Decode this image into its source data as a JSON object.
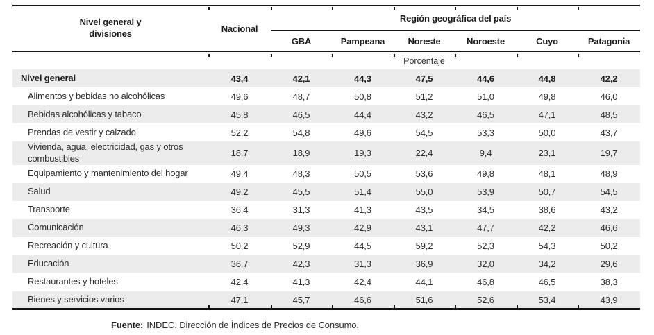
{
  "header": {
    "row_dimension_label": "Nivel general y divisiones",
    "national_label": "Nacional",
    "region_group_label": "Región geográfica del país",
    "region_columns": [
      "GBA",
      "Pampeana",
      "Noreste",
      "Noroeste",
      "Cuyo",
      "Patagonia"
    ],
    "unit_label": "Porcentaje"
  },
  "rows": [
    {
      "label": "Nivel general",
      "emphasis": true,
      "indent": false,
      "values": [
        "43,4",
        "42,1",
        "44,3",
        "47,5",
        "44,6",
        "44,8",
        "42,2"
      ]
    },
    {
      "label": "Alimentos y bebidas no alcohólicas",
      "emphasis": false,
      "indent": true,
      "values": [
        "49,6",
        "48,7",
        "50,8",
        "51,2",
        "51,0",
        "49,8",
        "46,0"
      ]
    },
    {
      "label": "Bebidas alcohólicas y tabaco",
      "emphasis": false,
      "indent": true,
      "values": [
        "45,8",
        "46,5",
        "44,4",
        "43,2",
        "46,5",
        "47,1",
        "48,5"
      ]
    },
    {
      "label": "Prendas de vestir y calzado",
      "emphasis": false,
      "indent": true,
      "values": [
        "52,2",
        "54,8",
        "49,6",
        "54,5",
        "53,3",
        "50,0",
        "43,7"
      ]
    },
    {
      "label": "Vivienda, agua, electricidad, gas y otros combustibles",
      "emphasis": false,
      "indent": true,
      "values": [
        "18,7",
        "18,9",
        "19,3",
        "22,4",
        "9,4",
        "23,1",
        "19,7"
      ]
    },
    {
      "label": "Equipamiento y mantenimiento del hogar",
      "emphasis": false,
      "indent": true,
      "values": [
        "49,4",
        "48,3",
        "50,5",
        "53,6",
        "49,8",
        "48,1",
        "48,9"
      ]
    },
    {
      "label": "Salud",
      "emphasis": false,
      "indent": true,
      "values": [
        "49,2",
        "45,5",
        "51,4",
        "55,0",
        "53,9",
        "50,7",
        "54,5"
      ]
    },
    {
      "label": "Transporte",
      "emphasis": false,
      "indent": true,
      "values": [
        "36,4",
        "31,3",
        "41,3",
        "43,5",
        "34,5",
        "38,6",
        "43,2"
      ]
    },
    {
      "label": "Comunicación",
      "emphasis": false,
      "indent": true,
      "values": [
        "46,3",
        "49,3",
        "42,9",
        "43,1",
        "47,7",
        "42,2",
        "46,6"
      ]
    },
    {
      "label": "Recreación y cultura",
      "emphasis": false,
      "indent": true,
      "values": [
        "50,2",
        "52,9",
        "44,5",
        "59,2",
        "52,3",
        "54,3",
        "50,2"
      ]
    },
    {
      "label": "Educación",
      "emphasis": false,
      "indent": true,
      "values": [
        "36,7",
        "42,3",
        "31,3",
        "36,9",
        "32,0",
        "34,2",
        "29,6"
      ]
    },
    {
      "label": "Restaurantes y hoteles",
      "emphasis": false,
      "indent": true,
      "values": [
        "42,4",
        "41,3",
        "42,4",
        "44,1",
        "46,8",
        "46,5",
        "38,3"
      ]
    },
    {
      "label": "Bienes y servicios varios",
      "emphasis": false,
      "indent": true,
      "values": [
        "47,1",
        "45,7",
        "46,6",
        "51,6",
        "52,6",
        "53,4",
        "43,9"
      ]
    }
  ],
  "footer": {
    "source_label": "Fuente:",
    "source_text": "INDEC. Dirección de Índices de Precios de Consumo."
  },
  "colors": {
    "stripe": "#ececec",
    "rule": "#151515",
    "text": "#2d2d2d"
  },
  "chart_data": {
    "type": "table",
    "title": "",
    "columns": [
      "Nivel general y divisiones",
      "Nacional",
      "GBA",
      "Pampeana",
      "Noreste",
      "Noroeste",
      "Cuyo",
      "Patagonia"
    ],
    "column_group": {
      "label": "Región geográfica del país",
      "span": [
        "GBA",
        "Pampeana",
        "Noreste",
        "Noroeste",
        "Cuyo",
        "Patagonia"
      ]
    },
    "unit": "Porcentaje",
    "rows": [
      [
        "Nivel general",
        43.4,
        42.1,
        44.3,
        47.5,
        44.6,
        44.8,
        42.2
      ],
      [
        "Alimentos y bebidas no alcohólicas",
        49.6,
        48.7,
        50.8,
        51.2,
        51.0,
        49.8,
        46.0
      ],
      [
        "Bebidas alcohólicas y tabaco",
        45.8,
        46.5,
        44.4,
        43.2,
        46.5,
        47.1,
        48.5
      ],
      [
        "Prendas de vestir y calzado",
        52.2,
        54.8,
        49.6,
        54.5,
        53.3,
        50.0,
        43.7
      ],
      [
        "Vivienda, agua, electricidad, gas y otros combustibles",
        18.7,
        18.9,
        19.3,
        22.4,
        9.4,
        23.1,
        19.7
      ],
      [
        "Equipamiento y mantenimiento del hogar",
        49.4,
        48.3,
        50.5,
        53.6,
        49.8,
        48.1,
        48.9
      ],
      [
        "Salud",
        49.2,
        45.5,
        51.4,
        55.0,
        53.9,
        50.7,
        54.5
      ],
      [
        "Transporte",
        36.4,
        31.3,
        41.3,
        43.5,
        34.5,
        38.6,
        43.2
      ],
      [
        "Comunicación",
        46.3,
        49.3,
        42.9,
        43.1,
        47.7,
        42.2,
        46.6
      ],
      [
        "Recreación y cultura",
        50.2,
        52.9,
        44.5,
        59.2,
        52.3,
        54.3,
        50.2
      ],
      [
        "Educación",
        36.7,
        42.3,
        31.3,
        36.9,
        32.0,
        34.2,
        29.6
      ],
      [
        "Restaurantes y hoteles",
        42.4,
        41.3,
        42.4,
        44.1,
        46.8,
        46.5,
        38.3
      ],
      [
        "Bienes y servicios varios",
        47.1,
        45.7,
        46.6,
        51.6,
        52.6,
        53.4,
        43.9
      ]
    ],
    "source": "Fuente: INDEC. Dirección de Índices de Precios de Consumo."
  }
}
